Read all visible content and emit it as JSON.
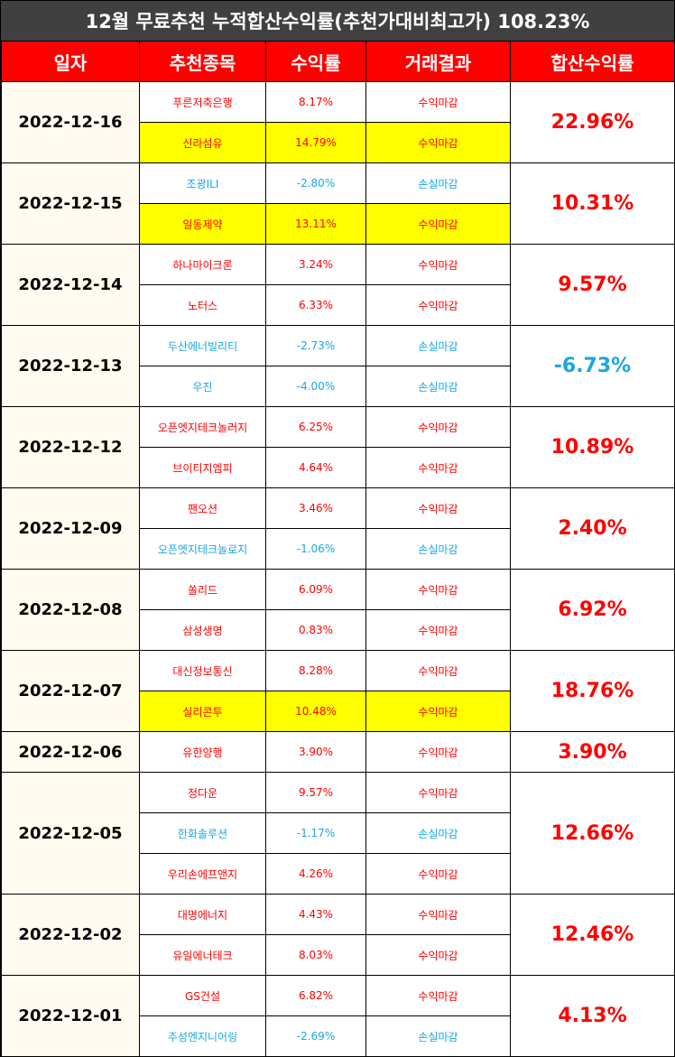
{
  "title": "12월 무료추천 누적합산수익률(추천가대비최고가) 108.23%",
  "headers": [
    "일자",
    "추천종목",
    "수익률",
    "거래결과",
    "합산수익률"
  ],
  "colors": {
    "profit": "#ff0000",
    "loss": "#1aa6e0",
    "highlight": "#ffff00",
    "header_bg": "#ff0000",
    "title_bg": "#404040"
  },
  "groups": [
    {
      "date": "2022-12-16",
      "total": "22.96%",
      "total_sign": "up",
      "rows": [
        {
          "stock": "푸른저축은행",
          "ret": "8.17%",
          "result": "수익마감",
          "sign": "up",
          "hl": false
        },
        {
          "stock": "신라섬유",
          "ret": "14.79%",
          "result": "수익마감",
          "sign": "up",
          "hl": true
        }
      ]
    },
    {
      "date": "2022-12-15",
      "total": "10.31%",
      "total_sign": "up",
      "rows": [
        {
          "stock": "조광ILI",
          "ret": "-2.80%",
          "result": "손실마감",
          "sign": "down",
          "hl": false
        },
        {
          "stock": "일동제약",
          "ret": "13.11%",
          "result": "수익마감",
          "sign": "up",
          "hl": true
        }
      ]
    },
    {
      "date": "2022-12-14",
      "total": "9.57%",
      "total_sign": "up",
      "rows": [
        {
          "stock": "하나마이크론",
          "ret": "3.24%",
          "result": "수익마감",
          "sign": "up",
          "hl": false
        },
        {
          "stock": "노터스",
          "ret": "6.33%",
          "result": "수익마감",
          "sign": "up",
          "hl": false
        }
      ]
    },
    {
      "date": "2022-12-13",
      "total": "-6.73%",
      "total_sign": "down",
      "rows": [
        {
          "stock": "두산에너빌리티",
          "ret": "-2.73%",
          "result": "손실마감",
          "sign": "down",
          "hl": false
        },
        {
          "stock": "우진",
          "ret": "-4.00%",
          "result": "손실마감",
          "sign": "down",
          "hl": false
        }
      ]
    },
    {
      "date": "2022-12-12",
      "total": "10.89%",
      "total_sign": "up",
      "rows": [
        {
          "stock": "오픈엣지테크놀러지",
          "ret": "6.25%",
          "result": "수익마감",
          "sign": "up",
          "hl": false
        },
        {
          "stock": "브이티지엠피",
          "ret": "4.64%",
          "result": "수익마감",
          "sign": "up",
          "hl": false
        }
      ]
    },
    {
      "date": "2022-12-09",
      "total": "2.40%",
      "total_sign": "up",
      "rows": [
        {
          "stock": "팬오션",
          "ret": "3.46%",
          "result": "수익마감",
          "sign": "up",
          "hl": false
        },
        {
          "stock": "오픈엣지테크놀로지",
          "ret": "-1.06%",
          "result": "손실마감",
          "sign": "down",
          "hl": false
        }
      ]
    },
    {
      "date": "2022-12-08",
      "total": "6.92%",
      "total_sign": "up",
      "rows": [
        {
          "stock": "쏠리드",
          "ret": "6.09%",
          "result": "수익마감",
          "sign": "up",
          "hl": false
        },
        {
          "stock": "삼성생명",
          "ret": "0.83%",
          "result": "수익마감",
          "sign": "up",
          "hl": false
        }
      ]
    },
    {
      "date": "2022-12-07",
      "total": "18.76%",
      "total_sign": "up",
      "rows": [
        {
          "stock": "대신정보통신",
          "ret": "8.28%",
          "result": "수익마감",
          "sign": "up",
          "hl": false
        },
        {
          "stock": "실리콘투",
          "ret": "10.48%",
          "result": "수익마감",
          "sign": "up",
          "hl": true
        }
      ]
    },
    {
      "date": "2022-12-06",
      "total": "3.90%",
      "total_sign": "up",
      "rows": [
        {
          "stock": "유한양행",
          "ret": "3.90%",
          "result": "수익마감",
          "sign": "up",
          "hl": false
        }
      ]
    },
    {
      "date": "2022-12-05",
      "total": "12.66%",
      "total_sign": "up",
      "rows": [
        {
          "stock": "정다운",
          "ret": "9.57%",
          "result": "수익마감",
          "sign": "up",
          "hl": false
        },
        {
          "stock": "한화솔루션",
          "ret": "-1.17%",
          "result": "손실마감",
          "sign": "down",
          "hl": false
        },
        {
          "stock": "우리손에프앤지",
          "ret": "4.26%",
          "result": "수익마감",
          "sign": "up",
          "hl": false
        }
      ]
    },
    {
      "date": "2022-12-02",
      "total": "12.46%",
      "total_sign": "up",
      "rows": [
        {
          "stock": "대명에너지",
          "ret": "4.43%",
          "result": "수익마감",
          "sign": "up",
          "hl": false
        },
        {
          "stock": "유일에너테크",
          "ret": "8.03%",
          "result": "수익마감",
          "sign": "up",
          "hl": false
        }
      ]
    },
    {
      "date": "2022-12-01",
      "total": "4.13%",
      "total_sign": "up",
      "rows": [
        {
          "stock": "GS건설",
          "ret": "6.82%",
          "result": "수익마감",
          "sign": "up",
          "hl": false
        },
        {
          "stock": "주성엔지니어링",
          "ret": "-2.69%",
          "result": "손실마감",
          "sign": "down",
          "hl": false
        }
      ]
    }
  ]
}
